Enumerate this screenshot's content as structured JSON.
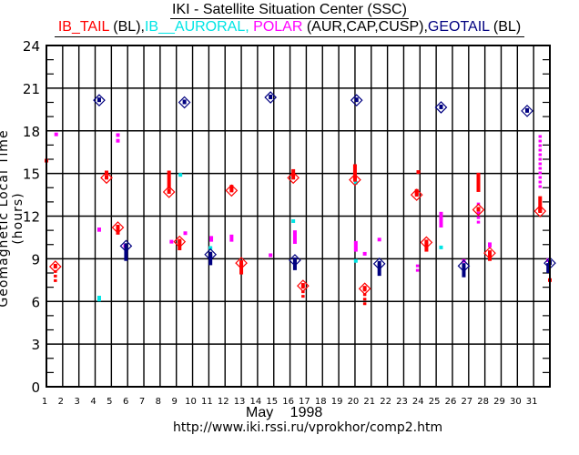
{
  "title": "IKI - Satellite Situation Center (SSC)",
  "legend": [
    {
      "text": "IB_TAIL",
      "color": "#ff0000"
    },
    {
      "text": " (BL),",
      "color": "#000000"
    },
    {
      "text": "IB__AURORAL, ",
      "color": "#00e5e5"
    },
    {
      "text": "POLAR",
      "color": "#ff00ff"
    },
    {
      "text": " (AUR,CAP,CUSP),",
      "color": "#000000"
    },
    {
      "text": "GEOTAIL",
      "color": "#000080"
    },
    {
      "text": " (BL)",
      "color": "#000000"
    }
  ],
  "month_label": "May 1998",
  "url": "http://www.iki.rssi.ru/vprokhor/comp2.htm",
  "chart_data": {
    "type": "scatter",
    "title": "IKI - Satellite Situation Center (SSC)",
    "xlabel": "May 1998",
    "ylabel": "Geomagnetic Local Time (hours)",
    "xlim": [
      1,
      32
    ],
    "ylim": [
      0,
      24
    ],
    "x_ticks": [
      "1",
      "2",
      "3",
      "4",
      "5",
      "6",
      "7",
      "8",
      "9",
      "10",
      "11",
      "12",
      "13",
      "14",
      "15",
      "16",
      "17",
      "18",
      "19",
      "20",
      "21",
      "22",
      "23",
      "24",
      "25",
      "26",
      "27",
      "28",
      "29",
      "30",
      "31"
    ],
    "y_ticks": [
      0,
      3,
      6,
      9,
      12,
      15,
      18,
      21,
      24
    ],
    "y_minor_step": 1,
    "grid": true,
    "colors": {
      "IB_TAIL": "#ff0000",
      "IB_AURORAL": "#00e5e5",
      "POLAR": "#ff00ff",
      "GEOTAIL": "#000080"
    },
    "series": [
      {
        "name": "IB_TAIL",
        "markers": [
          {
            "day": 1.55,
            "hour": 8.45
          },
          {
            "day": 4.7,
            "hour": 14.7
          },
          {
            "day": 5.4,
            "hour": 11.2
          },
          {
            "day": 8.55,
            "hour": 13.7
          },
          {
            "day": 9.2,
            "hour": 10.2
          },
          {
            "day": 12.4,
            "hour": 13.8
          },
          {
            "day": 13.0,
            "hour": 8.7
          },
          {
            "day": 16.2,
            "hour": 14.7
          },
          {
            "day": 16.8,
            "hour": 7.1
          },
          {
            "day": 20.0,
            "hour": 14.55
          },
          {
            "day": 20.6,
            "hour": 6.9
          },
          {
            "day": 23.8,
            "hour": 13.5
          },
          {
            "day": 24.4,
            "hour": 10.15
          },
          {
            "day": 27.6,
            "hour": 12.45
          },
          {
            "day": 28.3,
            "hour": 9.4
          },
          {
            "day": 31.4,
            "hour": 12.35
          }
        ],
        "segments": [
          {
            "day": 1.55,
            "from": 7.3,
            "to": 8.2,
            "style": "dotted"
          },
          {
            "day": 4.7,
            "from": 14.9,
            "to": 15.2,
            "style": "solid"
          },
          {
            "day": 5.4,
            "from": 10.7,
            "to": 11.3,
            "style": "solid"
          },
          {
            "day": 8.55,
            "from": 13.9,
            "to": 15.2,
            "style": "solid"
          },
          {
            "day": 9.2,
            "from": 9.6,
            "to": 10.3,
            "style": "solid"
          },
          {
            "day": 12.4,
            "from": 13.8,
            "to": 14.2,
            "style": "solid"
          },
          {
            "day": 13.0,
            "from": 7.9,
            "to": 8.7,
            "style": "solid"
          },
          {
            "day": 16.2,
            "from": 14.8,
            "to": 15.3,
            "style": "solid"
          },
          {
            "day": 16.8,
            "from": 6.2,
            "to": 7.1,
            "style": "dotted"
          },
          {
            "day": 20.0,
            "from": 14.6,
            "to": 15.65,
            "style": "solid"
          },
          {
            "day": 20.6,
            "from": 5.65,
            "to": 6.9,
            "style": "dotted"
          },
          {
            "day": 23.8,
            "from": 13.5,
            "to": 13.9,
            "style": "solid"
          },
          {
            "day": 24.4,
            "from": 9.5,
            "to": 10.15,
            "style": "solid"
          },
          {
            "day": 27.6,
            "from": 13.7,
            "to": 15.05,
            "style": "solid"
          },
          {
            "day": 28.3,
            "from": 8.85,
            "to": 9.4,
            "style": "solid"
          },
          {
            "day": 31.4,
            "from": 12.3,
            "to": 13.4,
            "style": "solid"
          }
        ],
        "dots": [
          {
            "day": 1.0,
            "hour": 15.9
          },
          {
            "day": 23.9,
            "hour": 15.1
          },
          {
            "day": 32.0,
            "hour": 7.5
          }
        ]
      },
      {
        "name": "IB_AURORAL",
        "markers": [],
        "segments": [
          {
            "day": 4.25,
            "from": 6.0,
            "to": 6.4,
            "style": "solid"
          }
        ],
        "dots": [
          {
            "day": 9.25,
            "hour": 14.9
          },
          {
            "day": 11.1,
            "hour": 9.76
          },
          {
            "day": 16.2,
            "hour": 11.65
          },
          {
            "day": 20.05,
            "hour": 14.35
          },
          {
            "day": 20.05,
            "hour": 8.85
          },
          {
            "day": 25.3,
            "hour": 9.8
          }
        ]
      },
      {
        "name": "POLAR",
        "markers": [],
        "segments": [
          {
            "day": 4.25,
            "from": 10.9,
            "to": 11.2,
            "style": "solid"
          },
          {
            "day": 11.15,
            "from": 10.2,
            "to": 10.6,
            "style": "solid"
          },
          {
            "day": 12.4,
            "from": 10.2,
            "to": 10.7,
            "style": "solid"
          },
          {
            "day": 16.3,
            "from": 10.05,
            "to": 11.0,
            "style": "solid"
          },
          {
            "day": 20.05,
            "from": 9.5,
            "to": 10.25,
            "style": "solid"
          },
          {
            "day": 23.85,
            "from": 8.0,
            "to": 8.6,
            "style": "dotted"
          },
          {
            "day": 25.3,
            "from": 11.2,
            "to": 12.3,
            "style": "solid"
          },
          {
            "day": 27.6,
            "from": 11.35,
            "to": 12.95,
            "style": "dotted"
          },
          {
            "day": 28.3,
            "from": 9.8,
            "to": 10.15,
            "style": "solid"
          },
          {
            "day": 31.4,
            "from": 13.95,
            "to": 17.7,
            "style": "dotted"
          }
        ],
        "dots": [
          {
            "day": 1.6,
            "hour": 17.75
          },
          {
            "day": 5.4,
            "hour": 17.7
          },
          {
            "day": 5.4,
            "hour": 17.3
          },
          {
            "day": 5.85,
            "hour": 9.9
          },
          {
            "day": 8.7,
            "hour": 10.2
          },
          {
            "day": 9.55,
            "hour": 10.8
          },
          {
            "day": 14.8,
            "hour": 9.25
          },
          {
            "day": 20.6,
            "hour": 9.35
          },
          {
            "day": 21.5,
            "hour": 10.35
          },
          {
            "day": 26.7,
            "hour": 8.85
          },
          {
            "day": 31.9,
            "hour": 8.9
          }
        ]
      },
      {
        "name": "GEOTAIL",
        "markers": [
          {
            "day": 4.25,
            "hour": 20.15
          },
          {
            "day": 5.9,
            "hour": 9.9
          },
          {
            "day": 9.5,
            "hour": 20.0
          },
          {
            "day": 11.1,
            "hour": 9.3
          },
          {
            "day": 14.8,
            "hour": 20.35
          },
          {
            "day": 16.3,
            "hour": 8.9
          },
          {
            "day": 20.1,
            "hour": 20.15
          },
          {
            "day": 21.5,
            "hour": 8.65
          },
          {
            "day": 25.3,
            "hour": 19.65
          },
          {
            "day": 26.7,
            "hour": 8.5
          },
          {
            "day": 30.6,
            "hour": 19.4
          },
          {
            "day": 32.0,
            "hour": 8.7
          }
        ],
        "segments": [
          {
            "day": 5.9,
            "from": 8.85,
            "to": 9.9,
            "style": "solid"
          },
          {
            "day": 11.1,
            "from": 8.55,
            "to": 9.3,
            "style": "solid"
          },
          {
            "day": 16.3,
            "from": 8.2,
            "to": 8.9,
            "style": "solid"
          },
          {
            "day": 21.5,
            "from": 7.8,
            "to": 8.65,
            "style": "solid"
          },
          {
            "day": 26.7,
            "from": 7.7,
            "to": 8.5,
            "style": "solid"
          },
          {
            "day": 31.9,
            "from": 8.0,
            "to": 8.7,
            "style": "solid"
          }
        ],
        "dots": []
      }
    ]
  }
}
